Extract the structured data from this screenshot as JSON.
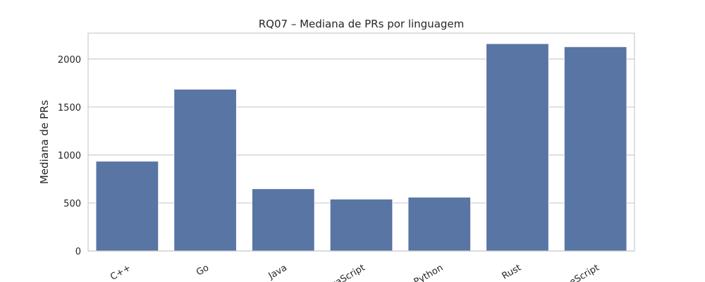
{
  "chart_data": {
    "type": "bar",
    "title": "RQ07 – Mediana de PRs por linguagem",
    "xlabel": "",
    "ylabel": "Mediana de PRs",
    "categories": [
      "C++",
      "Go",
      "Java",
      "JavaScript",
      "Python",
      "Rust",
      "TypeScript"
    ],
    "values": [
      935,
      1685,
      648,
      540,
      560,
      2160,
      2128
    ],
    "ylim": [
      0,
      2270
    ],
    "yticks": [
      0,
      500,
      1000,
      1500,
      2000
    ],
    "grid": "horizontal",
    "legend": "none",
    "bar_color": "#5975a4",
    "grid_color": "#cccccc",
    "frame_color": "#cccccc"
  }
}
